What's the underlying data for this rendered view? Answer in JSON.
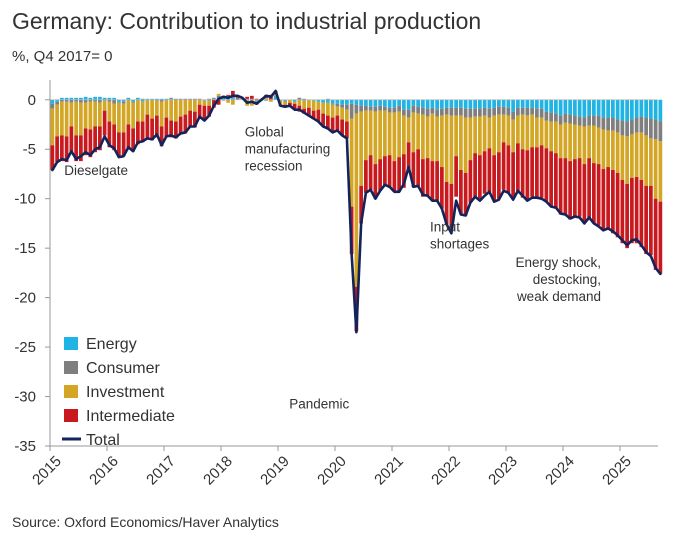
{
  "title": "Germany: Contribution to industrial production",
  "subtitle": "%, Q4 2017= 0",
  "source": "Source: Oxford Economics/Haver Analytics",
  "colors": {
    "energy": "#1fb4e3",
    "consumer": "#7f7f7f",
    "investment": "#d4a625",
    "intermediate": "#c8191e",
    "total": "#13235b"
  },
  "chart_data": {
    "type": "bar",
    "stacked": true,
    "x_start": "2015-01",
    "frequency": "monthly",
    "xlim": [
      "2015-01",
      "2025-09"
    ],
    "ylim": [
      -35,
      2
    ],
    "y_ticks": [
      0,
      -5,
      -10,
      -15,
      -20,
      -25,
      -30,
      -35
    ],
    "x_ticks": [
      "2015",
      "2016",
      "2017",
      "2018",
      "2019",
      "2020",
      "2021",
      "2022",
      "2023",
      "2024",
      "2025"
    ],
    "legend_position": "bottom-left",
    "series": [
      {
        "name": "Energy",
        "key": "energy",
        "values": [
          -0.4,
          -0.2,
          0.2,
          0.2,
          0.2,
          0.2,
          0.2,
          0.3,
          0.2,
          0.3,
          0.3,
          0.2,
          0.2,
          0.2,
          -0.2,
          -0.2,
          0.2,
          -0.2,
          0.2,
          -0.2,
          0.1,
          0.1,
          0.1,
          0.1,
          0.1,
          0.1,
          0,
          0,
          0,
          0,
          0,
          0,
          -0.1,
          -0.1,
          0.1,
          0.2,
          0.2,
          0.3,
          0.2,
          0,
          0,
          0,
          0,
          -0.1,
          0.1,
          -0.1,
          0,
          0.3,
          0,
          -0.1,
          0,
          -0.2,
          0,
          -0.1,
          0,
          -0.1,
          -0.2,
          -0.3,
          -0.3,
          -0.4,
          -0.4,
          -0.5,
          -0.5,
          -0.4,
          -0.5,
          -0.6,
          -0.6,
          -0.7,
          -0.7,
          -0.6,
          -0.7,
          -0.8,
          -0.8,
          -0.6,
          -1,
          -1,
          -0.6,
          -0.7,
          -0.8,
          -0.9,
          -0.8,
          -1,
          -0.9,
          -0.8,
          -0.8,
          -0.8,
          -0.8,
          -0.9,
          -0.9,
          -0.9,
          -0.9,
          -0.8,
          -0.9,
          -0.8,
          -0.7,
          -0.7,
          -0.8,
          -1.2,
          -0.8,
          -0.8,
          -0.8,
          -0.8,
          -0.9,
          -0.9,
          -1.2,
          -1.3,
          -1.4,
          -1.6,
          -1.4,
          -1.5,
          -1.6,
          -1.7,
          -1.8,
          -1.6,
          -1.6,
          -1.6,
          -1.8,
          -1.8,
          -1.8,
          -2,
          -2.1,
          -2.2,
          -2,
          -1.8,
          -1.7,
          -1.8,
          -1.9,
          -2,
          -2.2
        ]
      },
      {
        "name": "Consumer",
        "key": "consumer",
        "values": [
          -0.5,
          -0.3,
          -0.2,
          -0.2,
          -0.3,
          -0.2,
          -0.3,
          -0.3,
          -0.2,
          -0.2,
          -0.3,
          -0.1,
          -0.2,
          -0.4,
          -0.1,
          -0.2,
          0,
          -0.1,
          0,
          0.1,
          0,
          0,
          -0.1,
          -0.2,
          0,
          0.1,
          0.1,
          0.1,
          0.1,
          0.1,
          0.1,
          0.1,
          0,
          0.1,
          0.1,
          0.2,
          0.2,
          0.1,
          0.1,
          0.2,
          0,
          0.1,
          0.1,
          -0.1,
          0,
          0,
          0,
          0.1,
          -0.1,
          -0.1,
          0,
          0,
          0.2,
          0.1,
          0,
          0,
          0,
          0,
          0.1,
          -0.1,
          -0.3,
          -0.3,
          -0.5,
          -1.5,
          -0.9,
          -0.6,
          -0.5,
          -0.4,
          -0.5,
          -0.5,
          -0.4,
          -0.5,
          -0.5,
          -0.6,
          -0.6,
          -0.8,
          -0.7,
          -0.7,
          -0.7,
          -0.8,
          -0.6,
          -0.7,
          -0.7,
          -0.7,
          -0.8,
          -0.8,
          -0.8,
          -0.9,
          -0.9,
          -0.8,
          -0.8,
          -0.8,
          -0.9,
          -0.8,
          -0.8,
          -0.8,
          -0.8,
          -0.8,
          -0.8,
          -0.7,
          -0.8,
          -0.7,
          -0.9,
          -0.9,
          -0.9,
          -0.9,
          -0.8,
          -0.9,
          -0.9,
          -0.9,
          -0.9,
          -0.9,
          -0.9,
          -1,
          -1,
          -1.2,
          -1.2,
          -1.3,
          -1.3,
          -1.3,
          -1.5,
          -1.5,
          -1.5,
          -1.5,
          -1.6,
          -1.8,
          -2,
          -2,
          -2
        ]
      },
      {
        "name": "Investment",
        "key": "investment",
        "values": [
          -3.7,
          -3.2,
          -3.4,
          -3.5,
          -2.4,
          -3.4,
          -3.3,
          -2.6,
          -2.8,
          -2.5,
          -2.4,
          -1,
          -2,
          -2.1,
          -3,
          -2.9,
          -2.5,
          -2.6,
          -2.2,
          -2,
          -1.5,
          -1.9,
          -1.5,
          -2.5,
          -1.8,
          -2.1,
          -2.2,
          -1.7,
          -1.5,
          -1.1,
          -1.2,
          -0.5,
          -0.5,
          -0.5,
          0,
          0.2,
          -0.1,
          -0.3,
          -0.5,
          0,
          0.1,
          -0.6,
          -0.6,
          -0.3,
          -0.1,
          0.2,
          -0.2,
          0.2,
          -0.4,
          -0.3,
          -0.3,
          -0.2,
          -0.6,
          -0.8,
          -0.8,
          -1,
          -0.8,
          -1.1,
          -1.3,
          -1.3,
          -0.9,
          -1.2,
          -1.2,
          -8.9,
          -17.5,
          -7.5,
          -5,
          -4.5,
          -5.3,
          -4.9,
          -4.6,
          -4.3,
          -4.9,
          -4.6,
          -3.9,
          -2.5,
          -4,
          -3.6,
          -4.5,
          -4.2,
          -4.8,
          -4.5,
          -5.2,
          -6.8,
          -6.9,
          -4.1,
          -5.5,
          -5.6,
          -4.3,
          -3.7,
          -3.9,
          -3.6,
          -3.1,
          -4,
          -3.8,
          -2.8,
          -3,
          -3.3,
          -2.8,
          -3.5,
          -3.5,
          -3.3,
          -3,
          -2.8,
          -2.8,
          -3,
          -3.2,
          -3.4,
          -3.6,
          -3.8,
          -3.5,
          -3.3,
          -3.8,
          -3.3,
          -3.8,
          -3.7,
          -4,
          -3.7,
          -4,
          -4.1,
          -4.5,
          -4.8,
          -4.4,
          -4.5,
          -4.8,
          -5.1,
          -4.8,
          -6,
          -6.1
        ]
      },
      {
        "name": "Intermediate",
        "key": "intermediate",
        "values": [
          -2.5,
          -2.6,
          -2.6,
          -2.6,
          -2.7,
          -2.6,
          -2.6,
          -2.7,
          -2.8,
          -2.6,
          -2.4,
          -2.5,
          -2.6,
          -2.6,
          -2.5,
          -2.4,
          -2.5,
          -2.3,
          -2.3,
          -2.1,
          -2.5,
          -2.2,
          -2.2,
          -2,
          -2,
          -1.7,
          -1.7,
          -1.8,
          -1.9,
          -1.7,
          -1.6,
          -1.3,
          -1.5,
          -1.1,
          -0.8,
          -0.5,
          0,
          0.1,
          0.6,
          0.2,
          0.1,
          0.2,
          0.3,
          0.1,
          0,
          0.3,
          0.5,
          0.3,
          -0.1,
          -0.2,
          -0.3,
          -0.6,
          -0.6,
          -0.5,
          -0.8,
          -0.8,
          -1.2,
          -1.3,
          -1.4,
          -1.5,
          -1.5,
          -1.6,
          -1.7,
          -4.8,
          -4.5,
          -3.8,
          -3.3,
          -3.5,
          -3.5,
          -3.2,
          -3,
          -3.3,
          -3.1,
          -3.5,
          -3.4,
          -2.9,
          -3.5,
          -3.7,
          -3.8,
          -3.8,
          -4,
          -4,
          -4.2,
          -4.3,
          -4.4,
          -4.1,
          -4.4,
          -4.3,
          -4.3,
          -4.4,
          -4.4,
          -4.3,
          -4.5,
          -4.6,
          -4.7,
          -4.8,
          -4.8,
          -4.7,
          -4.8,
          -4.9,
          -5,
          -5,
          -5.2,
          -5.3,
          -5.4,
          -5.6,
          -5.6,
          -5.7,
          -5.8,
          -5.9,
          -5.9,
          -5.9,
          -5.9,
          -6,
          -6.1,
          -6.2,
          -6.2,
          -6.3,
          -6.4,
          -6.5,
          -6.4,
          -6.5,
          -6.6,
          -6.7,
          -6.8,
          -6.9,
          -7,
          -7.2,
          -7.3
        ]
      }
    ],
    "total": {
      "name": "Total",
      "values": [
        -7.1,
        -6.3,
        -6,
        -6.1,
        -5.2,
        -6,
        -5.7,
        -5.3,
        -5.6,
        -5,
        -4.8,
        -3.7,
        -4.6,
        -4.9,
        -5.8,
        -5.7,
        -4.8,
        -5.2,
        -4.3,
        -4.2,
        -3.9,
        -4,
        -3.5,
        -4.6,
        -3.7,
        -3.6,
        -3.8,
        -3.4,
        -3.3,
        -2.7,
        -2.7,
        -1.7,
        -2.1,
        -1.6,
        -0.6,
        0.1,
        0.3,
        0.2,
        0.4,
        0.4,
        0.2,
        -0.3,
        -0.2,
        -0.4,
        0,
        0.4,
        0.3,
        0.9,
        -0.6,
        -0.7,
        -0.6,
        -1,
        -1,
        -1.3,
        -1.6,
        -1.9,
        -2.2,
        -2.7,
        -2.9,
        -3.3,
        -3.1,
        -3.6,
        -3.9,
        -15.6,
        -23.5,
        -12.5,
        -9.4,
        -9.1,
        -10,
        -9.2,
        -8.6,
        -8.8,
        -9.3,
        -9.3,
        -8.5,
        -6.8,
        -8.8,
        -8.7,
        -9.6,
        -9.7,
        -10.2,
        -10.2,
        -11,
        -12.6,
        -13.5,
        -10.2,
        -11.6,
        -11.7,
        -10.4,
        -9.8,
        -10.2,
        -9.7,
        -9.3,
        -10.3,
        -10.1,
        -9.2,
        -9.4,
        -10.1,
        -9.2,
        -9.7,
        -10.2,
        -9.9,
        -9.9,
        -10,
        -10.3,
        -10.8,
        -10.9,
        -11.5,
        -11.6,
        -12,
        -11.8,
        -11.9,
        -12.5,
        -11.9,
        -12.5,
        -12.8,
        -13.2,
        -13,
        -13.3,
        -13.7,
        -14.2,
        -14.7,
        -14.2,
        -14.1,
        -14.7,
        -15.4,
        -15.8,
        -17,
        -17.6
      ]
    }
  },
  "legend": [
    {
      "label": "Energy",
      "key": "energy",
      "kind": "box"
    },
    {
      "label": "Consumer",
      "key": "consumer",
      "kind": "box"
    },
    {
      "label": "Investment",
      "key": "investment",
      "kind": "box"
    },
    {
      "label": "Intermediate",
      "key": "intermediate",
      "kind": "box"
    },
    {
      "label": "Total",
      "key": "total",
      "kind": "line"
    }
  ],
  "annotations": [
    {
      "id": "dieselgate",
      "lines": [
        "Dieselgate"
      ],
      "at": {
        "date": "2015-04",
        "y": -7.6
      },
      "anchor": "start"
    },
    {
      "id": "global-recession",
      "lines": [
        "Global",
        "manufacturing",
        "recession"
      ],
      "at": {
        "date": "2018-06",
        "y": -3.7
      },
      "anchor": "start"
    },
    {
      "id": "pandemic",
      "lines": [
        "Pandemic"
      ],
      "at": {
        "date": "2020-04",
        "y": -31.2
      },
      "anchor": "end"
    },
    {
      "id": "input-shortages",
      "lines": [
        "Input",
        "shortages"
      ],
      "at": {
        "date": "2021-09",
        "y": -13.3
      },
      "anchor": "start"
    },
    {
      "id": "energy-shock",
      "lines": [
        "Energy shock,",
        "destocking,",
        "weak demand"
      ],
      "at": {
        "date": "2024-09",
        "y": -16.9
      },
      "anchor": "end"
    }
  ]
}
